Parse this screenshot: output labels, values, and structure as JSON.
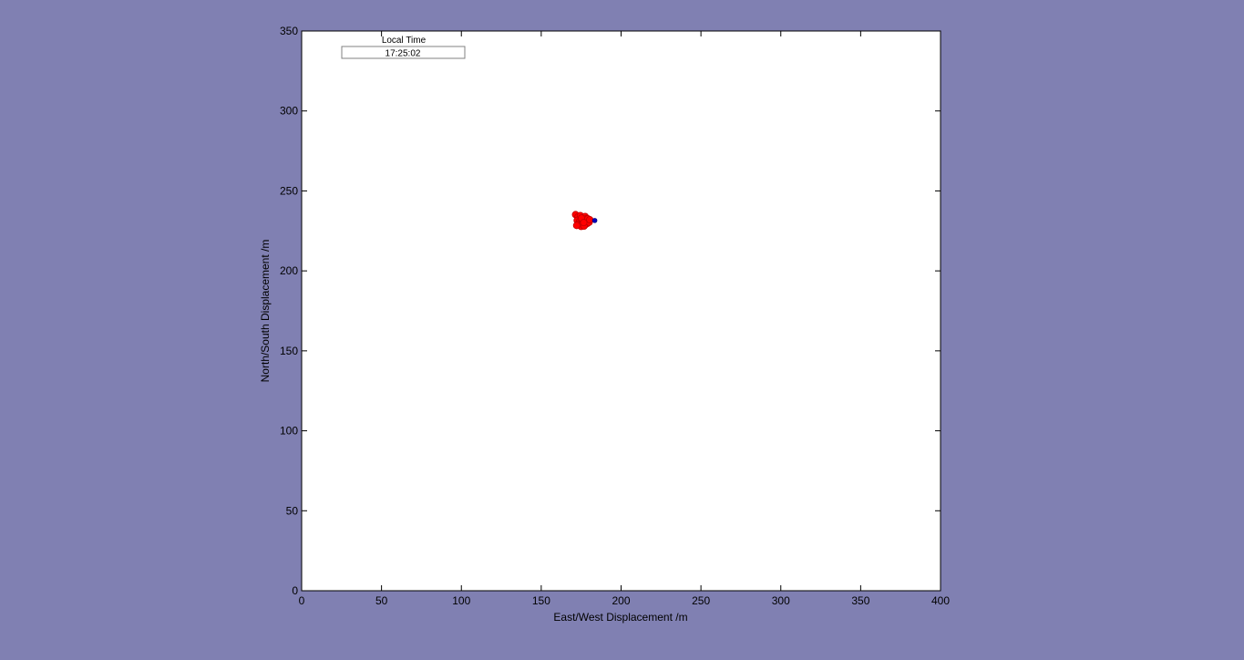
{
  "clock": {
    "title": "Local Time",
    "value": "17:25:02"
  },
  "chart_data": {
    "type": "scatter",
    "title": "",
    "xlabel": "East/West Displacement /m",
    "ylabel": "North/South Displacement /m",
    "xlim": [
      0,
      400
    ],
    "ylim": [
      0,
      350
    ],
    "xticks": [
      "0",
      "50",
      "100",
      "150",
      "200",
      "250",
      "300",
      "350",
      "400"
    ],
    "yticks": [
      "0",
      "50",
      "100",
      "150",
      "200",
      "250",
      "300",
      "350"
    ],
    "grid": false,
    "series": [
      {
        "color": "#ff0000",
        "edge_color": "#c00000",
        "points": [
          [
            171.5,
            235.2
          ],
          [
            173.0,
            233.8
          ],
          [
            174.5,
            234.6
          ],
          [
            176.0,
            233.2
          ],
          [
            177.5,
            234.0
          ],
          [
            178.5,
            232.8
          ],
          [
            172.5,
            231.6
          ],
          [
            174.0,
            231.0
          ],
          [
            175.5,
            231.8
          ],
          [
            177.0,
            231.2
          ],
          [
            178.5,
            230.8
          ],
          [
            179.5,
            231.6
          ],
          [
            173.0,
            229.2
          ],
          [
            174.5,
            228.6
          ],
          [
            176.0,
            229.4
          ],
          [
            177.5,
            228.8
          ],
          [
            178.8,
            229.6
          ],
          [
            180.0,
            230.4
          ],
          [
            175.0,
            227.8
          ],
          [
            176.8,
            228.0
          ],
          [
            172.2,
            228.4
          ],
          [
            179.2,
            232.6
          ],
          [
            180.4,
            232.0
          ],
          [
            175.2,
            233.0
          ],
          [
            176.6,
            230.2
          ]
        ]
      },
      {
        "color": "#0000c0",
        "edge_color": "#000080",
        "points": [
          [
            183.5,
            231.5
          ]
        ]
      }
    ]
  }
}
